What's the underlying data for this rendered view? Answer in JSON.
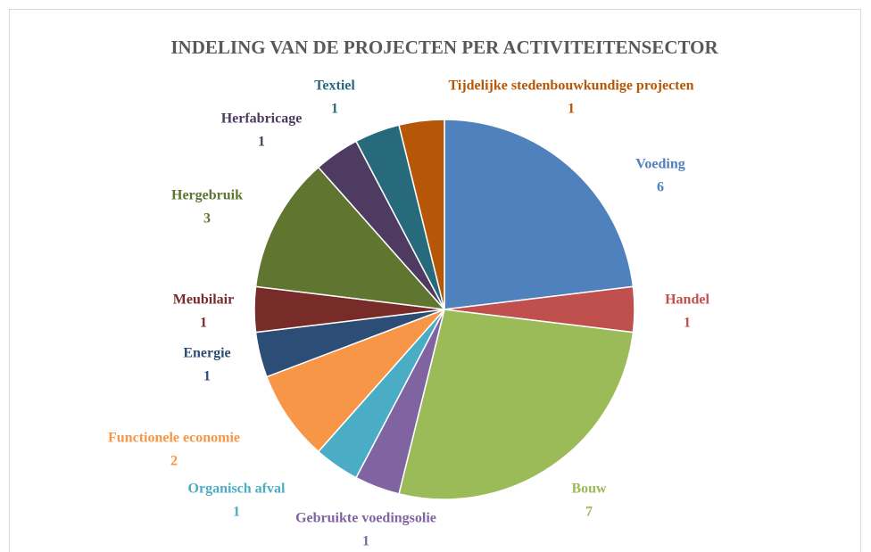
{
  "chart_data": {
    "type": "pie",
    "title": "INDELING VAN DE PROJECTEN PER ACTIVITEITENSECTOR",
    "categories": [
      "Voeding",
      "Handel",
      "Bouw",
      "Gebruikte voedingsolie",
      "Organisch afval",
      "Functionele economie",
      "Energie",
      "Meubilair",
      "Hergebruik",
      "Herfabricage",
      "Textiel",
      "Tijdelijke stedenbouwkundige projecten"
    ],
    "values": [
      6,
      1,
      7,
      1,
      1,
      2,
      1,
      1,
      3,
      1,
      1,
      1
    ],
    "colors": [
      "#4f81bd",
      "#c0504d",
      "#9bbb59",
      "#8064a2",
      "#4bacc6",
      "#f79646",
      "#2c4d75",
      "#772c2a",
      "#5f7530",
      "#4d3b62",
      "#276a7c",
      "#b65708"
    ]
  }
}
